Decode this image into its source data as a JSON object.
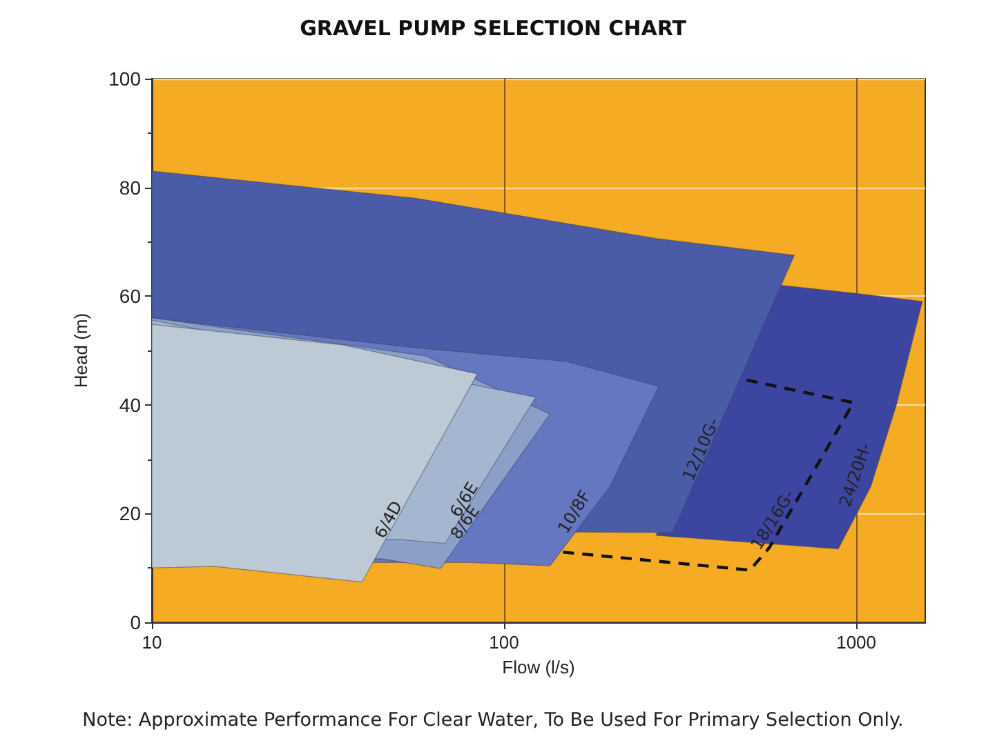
{
  "chart_data": {
    "type": "area",
    "title": "GRAVEL PUMP SELECTION CHART",
    "xlabel": "Flow (l/s)",
    "ylabel": "Head (m)",
    "log": "x",
    "xlim": [
      10,
      1570
    ],
    "xticks": [
      10,
      100,
      1000
    ],
    "ylim": [
      0,
      100
    ],
    "yticks": [
      0,
      20,
      40,
      60,
      80,
      100
    ],
    "grid": true,
    "annotations": [
      "Note: Approximate Performance For Clear Water, To Be Used For Primary Selection Only."
    ],
    "series": [
      {
        "name": "24/20H-",
        "color": "#3c45a0",
        "x": [
          608,
          1000,
          1540,
          1300,
          1100,
          889,
          270
        ],
        "values": [
          62,
          60.5,
          59,
          40,
          25,
          13.5,
          16
        ]
      },
      {
        "name": "18/16G-",
        "type": "line",
        "line_style": "dashed",
        "color": "#111111",
        "x": [
          147,
          499,
          566,
          982,
          477
        ],
        "values": [
          12.9,
          9.6,
          13.7,
          40.4,
          44.7
        ]
      },
      {
        "name": "12/10G-",
        "color": "#4a5ca8",
        "x": [
          10,
          56,
          270,
          667,
          301,
          10
        ],
        "values": [
          83,
          78,
          70.6,
          67.5,
          16.5,
          17
        ]
      },
      {
        "name": "10/8F",
        "color": "#6577c0",
        "x": [
          10,
          56,
          150,
          275,
          200,
          135,
          80,
          10
        ],
        "values": [
          56,
          50.5,
          48,
          43.4,
          25,
          10.4,
          11,
          11
        ]
      },
      {
        "name": "8/6E",
        "color": "#8c9fc9",
        "x": [
          10,
          60,
          135,
          66,
          45,
          10
        ],
        "values": [
          56,
          49,
          38.3,
          9.9,
          11.7,
          11
        ]
      },
      {
        "name": "6/6E",
        "color": "#a4b6d0",
        "x": [
          10,
          123,
          68,
          51,
          10
        ],
        "values": [
          55.6,
          41.4,
          14.5,
          15.2,
          15
        ]
      },
      {
        "name": "6/4D",
        "color": "#bccad5",
        "x": [
          10,
          35,
          84,
          39.5,
          15,
          10
        ],
        "values": [
          54.8,
          51,
          45.7,
          7.4,
          10.3,
          10
        ]
      }
    ]
  }
}
